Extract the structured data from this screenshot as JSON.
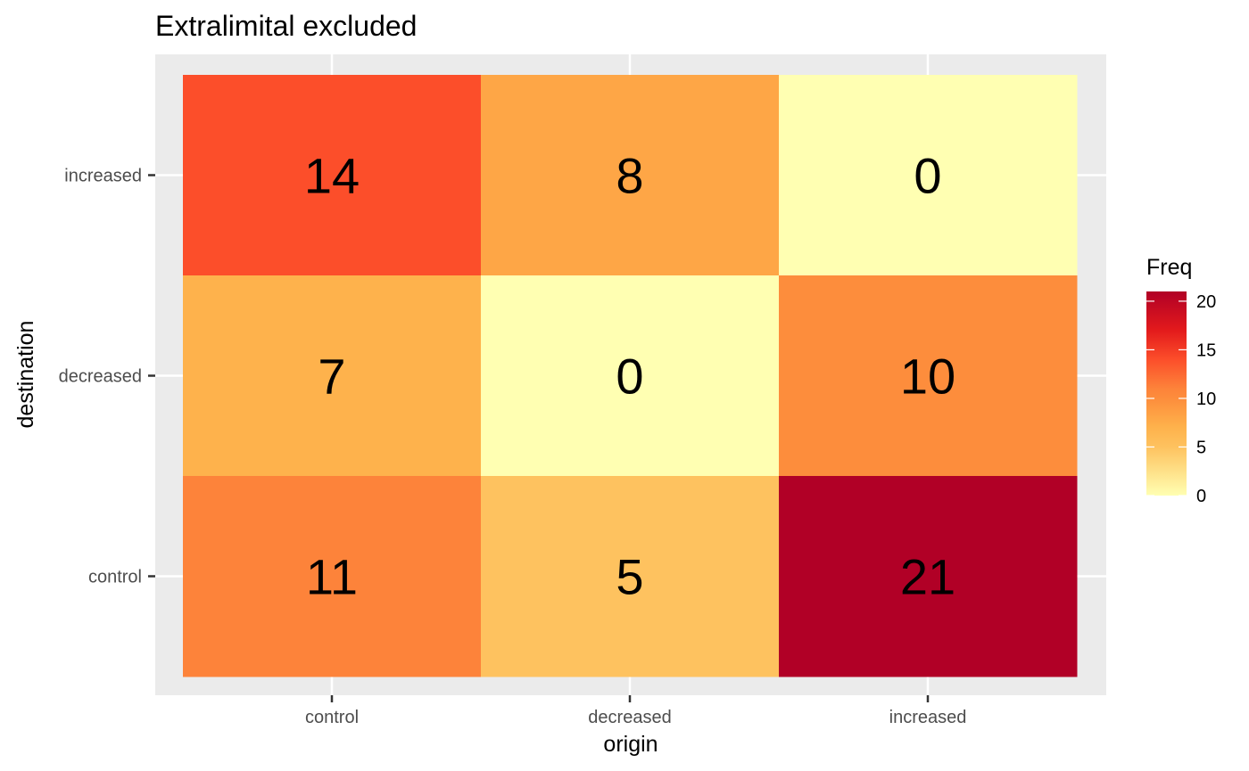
{
  "chart_data": {
    "type": "heatmap",
    "title": "Extralimital excluded",
    "xlabel": "origin",
    "ylabel": "destination",
    "x_categories": [
      "control",
      "decreased",
      "increased"
    ],
    "y_categories": [
      "control",
      "decreased",
      "increased"
    ],
    "cells": [
      {
        "x": "control",
        "y": "increased",
        "value": 14
      },
      {
        "x": "decreased",
        "y": "increased",
        "value": 8
      },
      {
        "x": "increased",
        "y": "increased",
        "value": 0
      },
      {
        "x": "control",
        "y": "decreased",
        "value": 7
      },
      {
        "x": "decreased",
        "y": "decreased",
        "value": 0
      },
      {
        "x": "increased",
        "y": "decreased",
        "value": 10
      },
      {
        "x": "control",
        "y": "control",
        "value": 11
      },
      {
        "x": "decreased",
        "y": "control",
        "value": 5
      },
      {
        "x": "increased",
        "y": "control",
        "value": 21
      }
    ],
    "legend": {
      "title": "Freq",
      "placement": "right",
      "range": [
        0,
        21
      ],
      "ticks": [
        0,
        5,
        10,
        15,
        20
      ]
    },
    "color_scale": {
      "name": "YlOrRd",
      "low": "#ffffb2",
      "high": "#b10026",
      "stops": [
        {
          "value": 0,
          "color": "#ffffb2"
        },
        {
          "value": 5,
          "color": "#fec25f"
        },
        {
          "value": 7,
          "color": "#feb24c"
        },
        {
          "value": 8,
          "color": "#fea646"
        },
        {
          "value": 10,
          "color": "#fd8d3c"
        },
        {
          "value": 11,
          "color": "#fd833a"
        },
        {
          "value": 14,
          "color": "#fc4e2a"
        },
        {
          "value": 17,
          "color": "#e31a1c"
        },
        {
          "value": 21,
          "color": "#b10026"
        }
      ]
    },
    "panel_background": "#ebebeb",
    "grid": true
  }
}
